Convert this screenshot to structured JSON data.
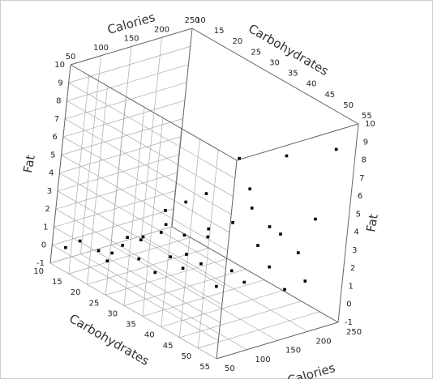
{
  "chart_data": {
    "type": "scatter3d",
    "xlabel": "Calories",
    "ylabel": "Carbohydrates",
    "zlabel": "Fat",
    "xlim": [
      50,
      250
    ],
    "xticks": [
      50,
      100,
      150,
      200,
      250
    ],
    "ylim": [
      10,
      55
    ],
    "yticks": [
      10,
      15,
      20,
      25,
      30,
      35,
      40,
      45,
      50,
      55
    ],
    "zlim": [
      -1,
      10
    ],
    "zticks": [
      -1,
      0,
      1,
      2,
      3,
      4,
      5,
      6,
      7,
      8,
      9,
      10
    ],
    "grid": true,
    "series": [
      {
        "color": "#000000",
        "x": [
          60,
          70,
          80,
          90,
          100,
          110,
          110,
          120,
          120,
          130,
          130,
          140,
          140,
          150,
          150,
          160,
          160,
          170,
          170,
          180,
          190,
          190,
          200,
          200,
          210,
          220,
          220,
          230,
          240,
          250,
          100,
          120,
          140,
          160,
          180,
          200,
          210,
          230,
          90,
          110
        ],
        "y": [
          12,
          14,
          20,
          22,
          25,
          24,
          28,
          27,
          30,
          26,
          32,
          30,
          35,
          28,
          38,
          33,
          40,
          30,
          42,
          36,
          45,
          38,
          40,
          48,
          44,
          42,
          50,
          46,
          48,
          50,
          18,
          22,
          25,
          28,
          30,
          33,
          36,
          38,
          16,
          20
        ],
        "z": [
          0,
          0.5,
          0,
          1,
          0.5,
          1.5,
          0,
          2,
          1,
          3,
          0.5,
          2,
          1,
          3.5,
          0,
          2.5,
          1,
          4,
          0.5,
          3,
          1.5,
          5,
          2,
          0.5,
          3,
          7,
          1,
          2,
          4,
          8,
          0,
          1,
          2,
          0.5,
          1.5,
          6,
          3.5,
          2.5,
          0,
          1
        ]
      }
    ]
  }
}
